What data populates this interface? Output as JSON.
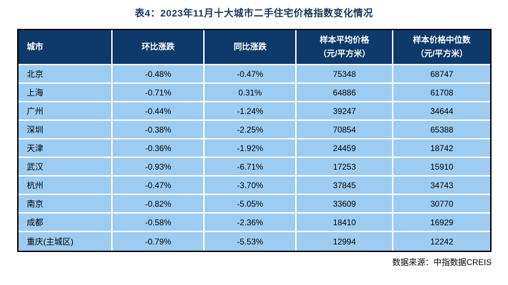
{
  "title": "表4：2023年11月十大城市二手住宅价格指数变化情况",
  "source_note": "数据来源：中指数据CREIS",
  "colors": {
    "title_text": "#17365D",
    "header_bg": "#0D3A6A",
    "header_text": "#FFFFFF",
    "row_bg": "#9CCCF2",
    "grid_line": "#FFFFFF",
    "outer_border": "#000000",
    "body_text": "#000000"
  },
  "table": {
    "headers": [
      "城市",
      "环比涨跌",
      "同比涨跌",
      "样本平均价格\n（元/平方米）",
      "样本价格中位数\n（元/平方米）"
    ],
    "rows": [
      [
        "北京",
        "-0.48%",
        "-0.47%",
        "75348",
        "68747"
      ],
      [
        "上海",
        "-0.71%",
        "0.31%",
        "64886",
        "61708"
      ],
      [
        "广州",
        "-0.44%",
        "-1.24%",
        "39247",
        "34644"
      ],
      [
        "深圳",
        "-0.38%",
        "-2.25%",
        "70854",
        "65388"
      ],
      [
        "天津",
        "-0.36%",
        "-1.92%",
        "24459",
        "18742"
      ],
      [
        "武汉",
        "-0.93%",
        "-6.71%",
        "17253",
        "15910"
      ],
      [
        "杭州",
        "-0.47%",
        "-3.70%",
        "37845",
        "34743"
      ],
      [
        "南京",
        "-0.82%",
        "-5.05%",
        "33609",
        "30770"
      ],
      [
        "成都",
        "-0.58%",
        "-2.36%",
        "18410",
        "16929"
      ],
      [
        "重庆(主城区)",
        "-0.79%",
        "-5.53%",
        "12994",
        "12242"
      ]
    ]
  },
  "chart_data": {
    "type": "table",
    "title": "表4：2023年11月十大城市二手住宅价格指数变化情况",
    "columns": [
      "城市",
      "环比涨跌",
      "同比涨跌",
      "样本平均价格（元/平方米）",
      "样本价格中位数（元/平方米）"
    ],
    "rows": [
      {
        "city": "北京",
        "mom_change": "-0.48%",
        "yoy_change": "-0.47%",
        "sample_avg_price": 75348,
        "sample_median_price": 68747
      },
      {
        "city": "上海",
        "mom_change": "-0.71%",
        "yoy_change": "0.31%",
        "sample_avg_price": 64886,
        "sample_median_price": 61708
      },
      {
        "city": "广州",
        "mom_change": "-0.44%",
        "yoy_change": "-1.24%",
        "sample_avg_price": 39247,
        "sample_median_price": 34644
      },
      {
        "city": "深圳",
        "mom_change": "-0.38%",
        "yoy_change": "-2.25%",
        "sample_avg_price": 70854,
        "sample_median_price": 65388
      },
      {
        "city": "天津",
        "mom_change": "-0.36%",
        "yoy_change": "-1.92%",
        "sample_avg_price": 24459,
        "sample_median_price": 18742
      },
      {
        "city": "武汉",
        "mom_change": "-0.93%",
        "yoy_change": "-6.71%",
        "sample_avg_price": 17253,
        "sample_median_price": 15910
      },
      {
        "city": "杭州",
        "mom_change": "-0.47%",
        "yoy_change": "-3.70%",
        "sample_avg_price": 37845,
        "sample_median_price": 34743
      },
      {
        "city": "南京",
        "mom_change": "-0.82%",
        "yoy_change": "-5.05%",
        "sample_avg_price": 33609,
        "sample_median_price": 30770
      },
      {
        "city": "成都",
        "mom_change": "-0.58%",
        "yoy_change": "-2.36%",
        "sample_avg_price": 18410,
        "sample_median_price": 16929
      },
      {
        "city": "重庆(主城区)",
        "mom_change": "-0.79%",
        "yoy_change": "-5.53%",
        "sample_avg_price": 12994,
        "sample_median_price": 12242
      }
    ],
    "source": "数据来源：中指数据CREIS"
  }
}
